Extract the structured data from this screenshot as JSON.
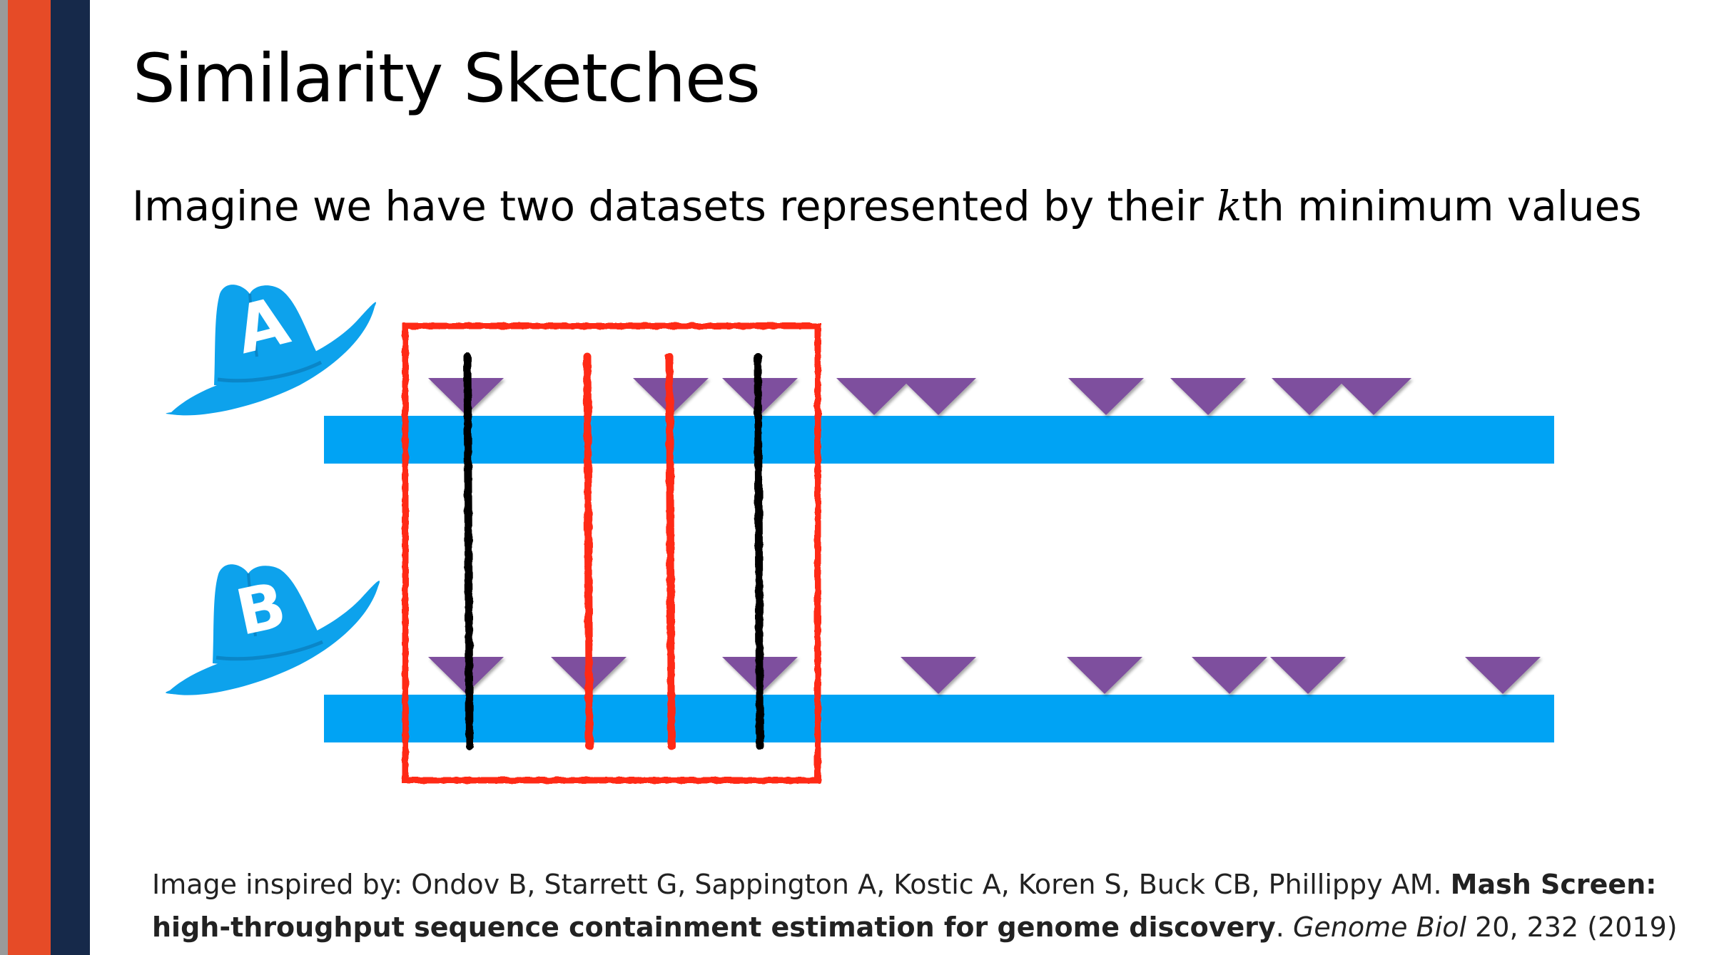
{
  "slide": {
    "title": "Similarity Sketches",
    "subtitle_before": "Imagine we have two datasets represented by their ",
    "subtitle_k": "k",
    "subtitle_after": "th minimum values"
  },
  "datasets": [
    {
      "label": "A",
      "hat_color": "#0da2ec"
    },
    {
      "label": "B",
      "hat_color": "#0da2ec"
    }
  ],
  "colors": {
    "bar": "#00a3f4",
    "triangle": "#7e4f9e",
    "shared_line": "#000000",
    "unshared_line": "#ff2a18",
    "selection_box": "#ff2a18",
    "stripe_orange": "#e64b27",
    "stripe_navy": "#16294a"
  },
  "citation": {
    "line1_normal": "Image inspired by: Ondov B, Starrett G, Sappington A, Kostic A, Koren S, Buck CB, Phillippy AM. ",
    "line1_bold": "Mash Screen:",
    "line2_bold": "high-throughput sequence containment estimation for genome discovery",
    "line2_after_bold": ". ",
    "journal": "Genome Biol",
    "volume_year": " 20, 232 (2019)"
  }
}
